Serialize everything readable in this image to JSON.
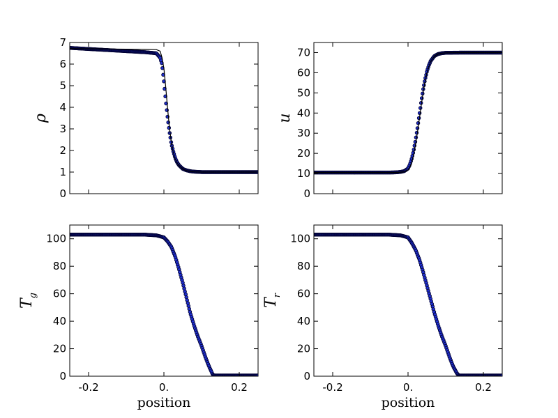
{
  "colors": {
    "marker_fill": "#1f2fd0",
    "marker_edge": "#000033",
    "line": "#000000"
  },
  "chart_data": [
    {
      "type": "scatter",
      "ylabel": "ρ",
      "xlabel": "",
      "xlim": [
        -0.25,
        0.25
      ],
      "ylim": [
        0,
        7
      ],
      "xticks": [
        -0.2,
        0.0,
        0.2
      ],
      "xtick_labels": [
        "",
        "",
        ""
      ],
      "yticks": [
        0,
        1,
        2,
        3,
        4,
        5,
        6,
        7
      ],
      "ytick_labels": [
        "0",
        "1",
        "2",
        "3",
        "4",
        "5",
        "6",
        "7"
      ],
      "series": [
        {
          "kind": "markers",
          "x": [
            -0.25,
            -0.2,
            -0.15,
            -0.1,
            -0.05,
            -0.02,
            -0.01,
            -0.005,
            0.0,
            0.005,
            0.01,
            0.015,
            0.02,
            0.025,
            0.03,
            0.035,
            0.04,
            0.05,
            0.06,
            0.07,
            0.08,
            0.1,
            0.15,
            0.2,
            0.25
          ],
          "y": [
            6.75,
            6.7,
            6.65,
            6.6,
            6.55,
            6.5,
            6.3,
            6.0,
            5.2,
            4.3,
            3.5,
            2.85,
            2.3,
            1.95,
            1.65,
            1.45,
            1.32,
            1.15,
            1.08,
            1.04,
            1.02,
            1.0,
            1.0,
            1.0,
            1.0
          ]
        },
        {
          "kind": "line",
          "x": [
            -0.25,
            -0.15,
            -0.05,
            -0.02,
            -0.01,
            -0.005,
            0.0,
            0.005,
            0.01,
            0.015,
            0.02,
            0.025,
            0.03,
            0.035,
            0.04,
            0.05,
            0.06,
            0.07,
            0.08,
            0.1,
            0.15,
            0.2,
            0.25
          ],
          "y": [
            6.72,
            6.7,
            6.68,
            6.67,
            6.6,
            6.3,
            5.8,
            4.9,
            3.9,
            3.0,
            2.35,
            1.9,
            1.6,
            1.42,
            1.3,
            1.14,
            1.07,
            1.03,
            1.01,
            1.0,
            1.0,
            1.0,
            1.0
          ]
        }
      ]
    },
    {
      "type": "scatter",
      "ylabel": "u",
      "xlabel": "",
      "xlim": [
        -0.25,
        0.25
      ],
      "ylim": [
        0,
        75
      ],
      "xticks": [
        -0.2,
        0.0,
        0.2
      ],
      "xtick_labels": [
        "",
        "",
        ""
      ],
      "yticks": [
        0,
        10,
        20,
        30,
        40,
        50,
        60,
        70
      ],
      "ytick_labels": [
        "0",
        "10",
        "20",
        "30",
        "40",
        "50",
        "60",
        "70"
      ],
      "series": [
        {
          "kind": "markers",
          "x": [
            -0.25,
            -0.15,
            -0.05,
            -0.03,
            -0.02,
            -0.01,
            0.0,
            0.005,
            0.01,
            0.015,
            0.02,
            0.025,
            0.03,
            0.035,
            0.04,
            0.045,
            0.05,
            0.055,
            0.06,
            0.07,
            0.08,
            0.09,
            0.1,
            0.15,
            0.2,
            0.25
          ],
          "y": [
            10.5,
            10.5,
            10.5,
            10.6,
            10.8,
            11.2,
            12.5,
            14.5,
            17.5,
            21.5,
            26.5,
            32.5,
            39.0,
            45.5,
            51.5,
            56.5,
            60.5,
            63.5,
            65.8,
            68.3,
            69.3,
            69.7,
            69.9,
            70.0,
            70.0,
            70.0
          ]
        },
        {
          "kind": "line",
          "x": [
            -0.25,
            -0.15,
            -0.05,
            -0.03,
            -0.02,
            -0.01,
            0.0,
            0.005,
            0.01,
            0.015,
            0.02,
            0.025,
            0.03,
            0.035,
            0.04,
            0.045,
            0.05,
            0.055,
            0.06,
            0.07,
            0.08,
            0.09,
            0.1,
            0.15,
            0.2,
            0.25
          ],
          "y": [
            10.5,
            10.5,
            10.5,
            10.5,
            10.6,
            10.9,
            11.8,
            13.3,
            15.8,
            19.5,
            24.5,
            30.5,
            37.0,
            43.8,
            50.0,
            55.5,
            59.8,
            63.0,
            65.5,
            68.2,
            69.3,
            69.7,
            69.9,
            70.0,
            70.0,
            70.0
          ]
        }
      ]
    },
    {
      "type": "scatter",
      "ylabel": "T",
      "ylabel_sub": "g",
      "xlabel": "position",
      "xlim": [
        -0.25,
        0.25
      ],
      "ylim": [
        0,
        110
      ],
      "xticks": [
        -0.2,
        0.0,
        0.2
      ],
      "xtick_labels": [
        "-0.2",
        "0.",
        "0.2"
      ],
      "yticks": [
        0,
        20,
        40,
        60,
        80,
        100
      ],
      "ytick_labels": [
        "0",
        "20",
        "40",
        "60",
        "80",
        "100"
      ],
      "series": [
        {
          "kind": "markers",
          "x": [
            -0.25,
            -0.2,
            -0.1,
            -0.05,
            -0.02,
            0.0,
            0.01,
            0.02,
            0.03,
            0.04,
            0.05,
            0.06,
            0.07,
            0.08,
            0.09,
            0.1,
            0.11,
            0.12,
            0.125,
            0.13,
            0.135,
            0.14,
            0.15,
            0.2,
            0.25
          ],
          "y": [
            103,
            103,
            103,
            103,
            102.5,
            101,
            98,
            94,
            87,
            78,
            68,
            57,
            46,
            37,
            29,
            22,
            14,
            7,
            4,
            1,
            0.5,
            0.5,
            0.5,
            0.5,
            0.5
          ]
        }
      ]
    },
    {
      "type": "scatter",
      "ylabel": "T",
      "ylabel_sub": "r",
      "xlabel": "position",
      "xlim": [
        -0.25,
        0.25
      ],
      "ylim": [
        0,
        110
      ],
      "xticks": [
        -0.2,
        0.0,
        0.2
      ],
      "xtick_labels": [
        "-0.2",
        "0.",
        "0.2"
      ],
      "yticks": [
        0,
        20,
        40,
        60,
        80,
        100
      ],
      "ytick_labels": [
        "0",
        "20",
        "40",
        "60",
        "80",
        "100"
      ],
      "series": [
        {
          "kind": "markers",
          "x": [
            -0.25,
            -0.2,
            -0.1,
            -0.05,
            -0.02,
            0.0,
            0.01,
            0.02,
            0.03,
            0.04,
            0.05,
            0.06,
            0.07,
            0.08,
            0.09,
            0.1,
            0.11,
            0.12,
            0.13,
            0.135,
            0.14,
            0.15,
            0.2,
            0.25
          ],
          "y": [
            103,
            103,
            103,
            103,
            102.5,
            101,
            97,
            92,
            85,
            76,
            66,
            56,
            46,
            37,
            29,
            22,
            14,
            7,
            2,
            0.5,
            0.5,
            0.5,
            0.5,
            0.5
          ]
        }
      ]
    }
  ]
}
